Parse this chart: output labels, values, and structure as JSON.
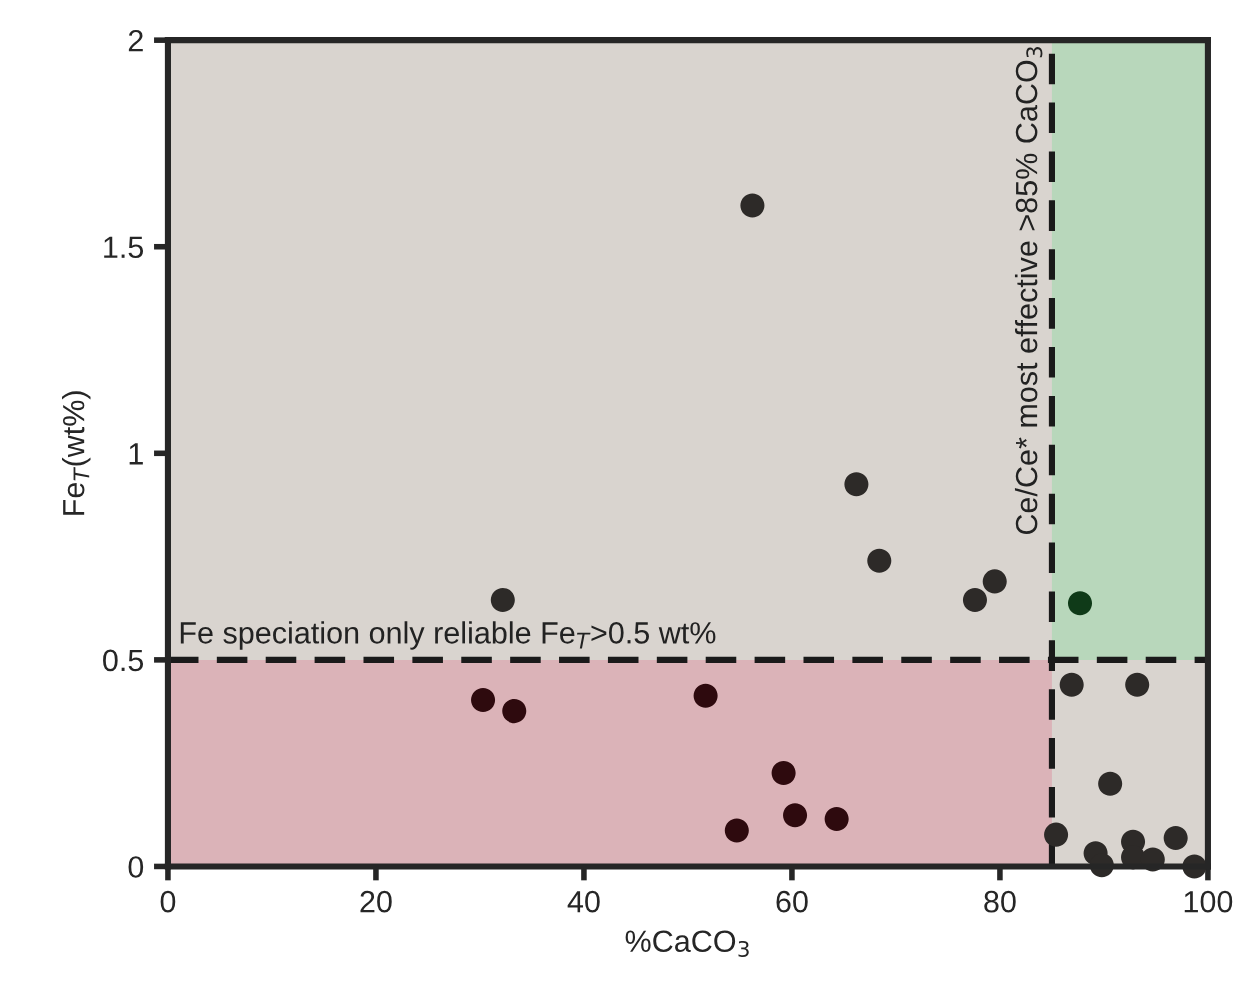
{
  "chart_data": {
    "type": "scatter",
    "xlabel": "%CaCO$_{3}$",
    "ylabel": "Fe$_{T}$(wt%)",
    "xlim": [
      0,
      100
    ],
    "ylim": [
      0,
      2
    ],
    "xticks": [
      0,
      20,
      40,
      60,
      80,
      100
    ],
    "yticks": [
      0,
      0.5,
      1,
      1.5,
      2
    ],
    "grid": false,
    "marker": "circle",
    "bands": [
      {
        "axis": "x",
        "from": 0,
        "to": 100,
        "color": "#d9d4cf"
      },
      {
        "axis": "y",
        "from": 0,
        "to": 0.5,
        "color": "#dbb3b8"
      },
      {
        "axis": "x",
        "from": 85,
        "to": 100,
        "color": "#b8d7bb"
      }
    ],
    "ref_lines": [
      {
        "axis": "y",
        "value": 0.5,
        "label": "Fe speciation only reliable Fe$_{T}$>0.5 wt%",
        "line_style": "dashed",
        "color": "#1a1a1a"
      },
      {
        "axis": "x",
        "value": 85,
        "label": "Ce/Ce* most effective >85% CaCO$_{3}$",
        "line_style": "dashed",
        "color": "#1a1a1a"
      }
    ],
    "series": [
      {
        "color": "#2d2a28",
        "x": [
          56.2,
          32.2,
          66.2,
          68.4,
          77.6,
          79.5,
          86.9,
          93.2,
          90.6,
          85.4,
          89.2,
          89.8,
          92.8,
          92.8,
          94.7,
          96.9,
          98.7
        ],
        "values": [
          1.6,
          0.645,
          0.925,
          0.74,
          0.645,
          0.69,
          0.44,
          0.44,
          0.2,
          0.077,
          0.032,
          0.003,
          0.06,
          0.022,
          0.017,
          0.069,
          0.0
        ]
      },
      {
        "color": "#2e0a0e",
        "x": [
          30.3,
          33.3,
          51.7,
          59.2,
          54.7,
          60.3,
          64.3
        ],
        "values": [
          0.403,
          0.376,
          0.413,
          0.226,
          0.087,
          0.124,
          0.115
        ]
      },
      {
        "color": "#0f3a18",
        "x": [
          87.7
        ],
        "values": [
          0.637
        ]
      }
    ]
  }
}
